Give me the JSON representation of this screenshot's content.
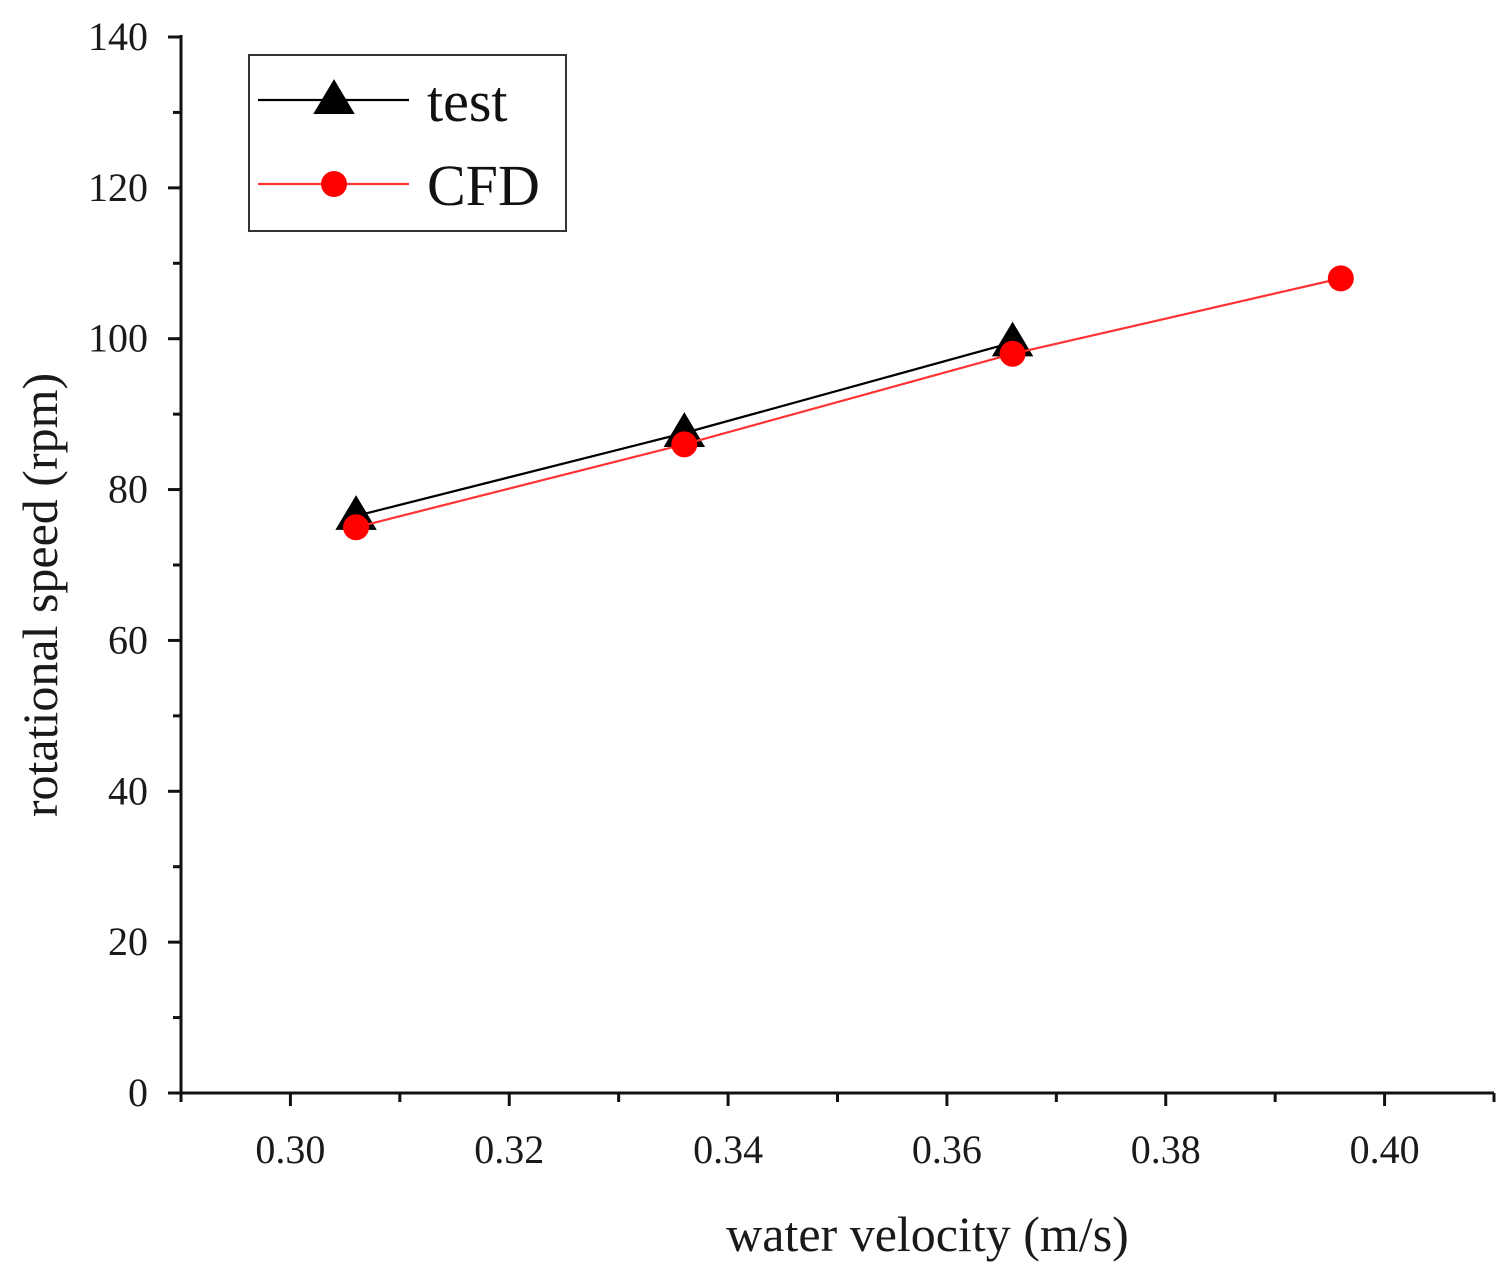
{
  "chart_data": {
    "type": "line",
    "title": "",
    "xlabel": "water velocity (m/s)",
    "ylabel": "rotational speed (rpm)",
    "xlim": [
      0.29,
      0.41
    ],
    "ylim": [
      0,
      140
    ],
    "x_ticks": [
      0.3,
      0.32,
      0.34,
      0.36,
      0.38,
      0.4
    ],
    "x_tick_labels": [
      "0.30",
      "0.32",
      "0.34",
      "0.36",
      "0.38",
      "0.40"
    ],
    "x_minor_ticks": [
      0.29,
      0.31,
      0.33,
      0.35,
      0.37,
      0.39,
      0.41
    ],
    "y_ticks": [
      0,
      20,
      40,
      60,
      80,
      100,
      120,
      140
    ],
    "y_tick_labels": [
      "0",
      "20",
      "40",
      "60",
      "80",
      "100",
      "120",
      "140"
    ],
    "y_minor_ticks": [
      10,
      30,
      50,
      70,
      90,
      110,
      130
    ],
    "grid": false,
    "legend_position": "top-left",
    "series": [
      {
        "name": "test",
        "marker": "triangle",
        "color": "#000000",
        "x": [
          0.306,
          0.336,
          0.366
        ],
        "values": [
          76.5,
          87.5,
          99.5
        ]
      },
      {
        "name": "CFD",
        "marker": "circle",
        "color": "#ff0000",
        "line_color": "#ff3333",
        "x": [
          0.306,
          0.336,
          0.366,
          0.396
        ],
        "values": [
          75,
          86,
          98,
          108
        ]
      }
    ]
  }
}
